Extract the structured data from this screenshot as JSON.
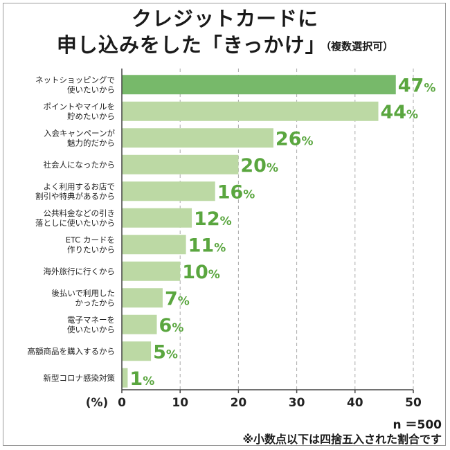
{
  "title": {
    "line1": "クレジットカードに",
    "line2": "申し込みをした「きっかけ」",
    "note": "（複数選択可）"
  },
  "footer": {
    "n": "n ＝500",
    "rounding_note": "※小数点以下は四捨五入された割合です"
  },
  "colors": {
    "bar_top": "#77b96a",
    "bar": "#bcd9a4",
    "value_text": "#5aa63f",
    "gridline": "#a9a9a9",
    "axis": "#444444"
  },
  "chart_data": {
    "type": "bar",
    "orientation": "horizontal",
    "categories": [
      "ネットショッピングで\n使いたいから",
      "ポイントやマイルを\n貯めたいから",
      "入会キャンペーンが\n魅力的だから",
      "社会人になったから",
      "よく利用するお店で\n割引や特典があるから",
      "公共料金などの引き\n落としに使いたいから",
      "ETC カードを\n作りたいから",
      "海外旅行に行くから",
      "後払いで利用した\nかったから",
      "電子マネーを\n使いたいから",
      "高額商品を購入するから",
      "新型コロナ感染対策"
    ],
    "values": [
      47,
      44,
      26,
      20,
      16,
      12,
      11,
      10,
      7,
      6,
      5,
      1
    ],
    "value_suffix": "%",
    "xlabel": "(%)",
    "xlim": [
      0,
      50
    ],
    "xticks": [
      0,
      10,
      20,
      30,
      40,
      50
    ],
    "grid": "dashed vertical"
  }
}
